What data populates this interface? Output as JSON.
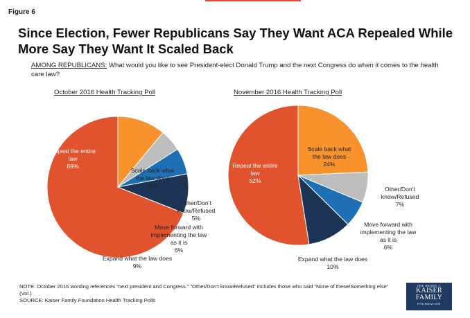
{
  "figure_label": "Figure 6",
  "title": "Since Election, Fewer Republicans Say They Want ACA Repealed While More Say They Want It Scaled Back",
  "question_prefix": "AMONG REPUBLICANS:",
  "question_text": " What would you like to see President-elect Donald Trump and the next Congress do when it comes to the health care law?",
  "note_line1": "NOTE: October 2016 wording references “next president and Congress.” “Other/Don’t know/Refused” includes those who said “None of these/Something else” (Vol.)",
  "note_line2": "SOURCE: Kaiser Family Foundation Health Tracking Polls",
  "logo": {
    "line1": "THE HENRY J.",
    "line2": "KAISER",
    "line3": "FAMILY",
    "line4": "FOUNDATION"
  },
  "colors": {
    "repeal": "#e0532c",
    "scale_back": "#f7922d",
    "other": "#bdbdbd",
    "move_forward": "#1f6fb5",
    "expand": "#1c3557",
    "accent_line": "#e04b2a"
  },
  "chart_data": [
    {
      "type": "pie",
      "title": "October 2016 Health Tracking Poll",
      "categories": [
        "Repeal the entire law",
        "Scale back what the law does",
        "Other/Don’t know/Refused",
        "Move forward with implementing the law as it is",
        "Expand what the law does"
      ],
      "values": [
        69,
        11,
        5,
        6,
        9
      ],
      "labels": [
        [
          "Repeal the entire",
          "law",
          "69%"
        ],
        [
          "Scale back what",
          "the law does",
          "11%"
        ],
        [
          "Other/Don’t",
          "know/Refused",
          "5%"
        ],
        [
          "Move forward with",
          "implementing the law",
          "as it is",
          "6%"
        ],
        [
          "Expand what the law does",
          "9%"
        ]
      ]
    },
    {
      "type": "pie",
      "title": "November 2016 Health Tracking Poll",
      "categories": [
        "Repeal the entire law",
        "Scale back what the law does",
        "Other/Don’t know/Refused",
        "Move forward with implementing the law as it is",
        "Expand what the law does"
      ],
      "values": [
        52,
        24,
        7,
        6,
        10
      ],
      "labels": [
        [
          "Repeal the entire",
          "law",
          "52%"
        ],
        [
          "Scale back what",
          "the law does",
          "24%"
        ],
        [
          "Other/Don’t",
          "know/Refused",
          "7%"
        ],
        [
          "Move forward with",
          "implementing the law",
          "as it is",
          "6%"
        ],
        [
          "Expand what the law does",
          "10%"
        ]
      ]
    }
  ]
}
